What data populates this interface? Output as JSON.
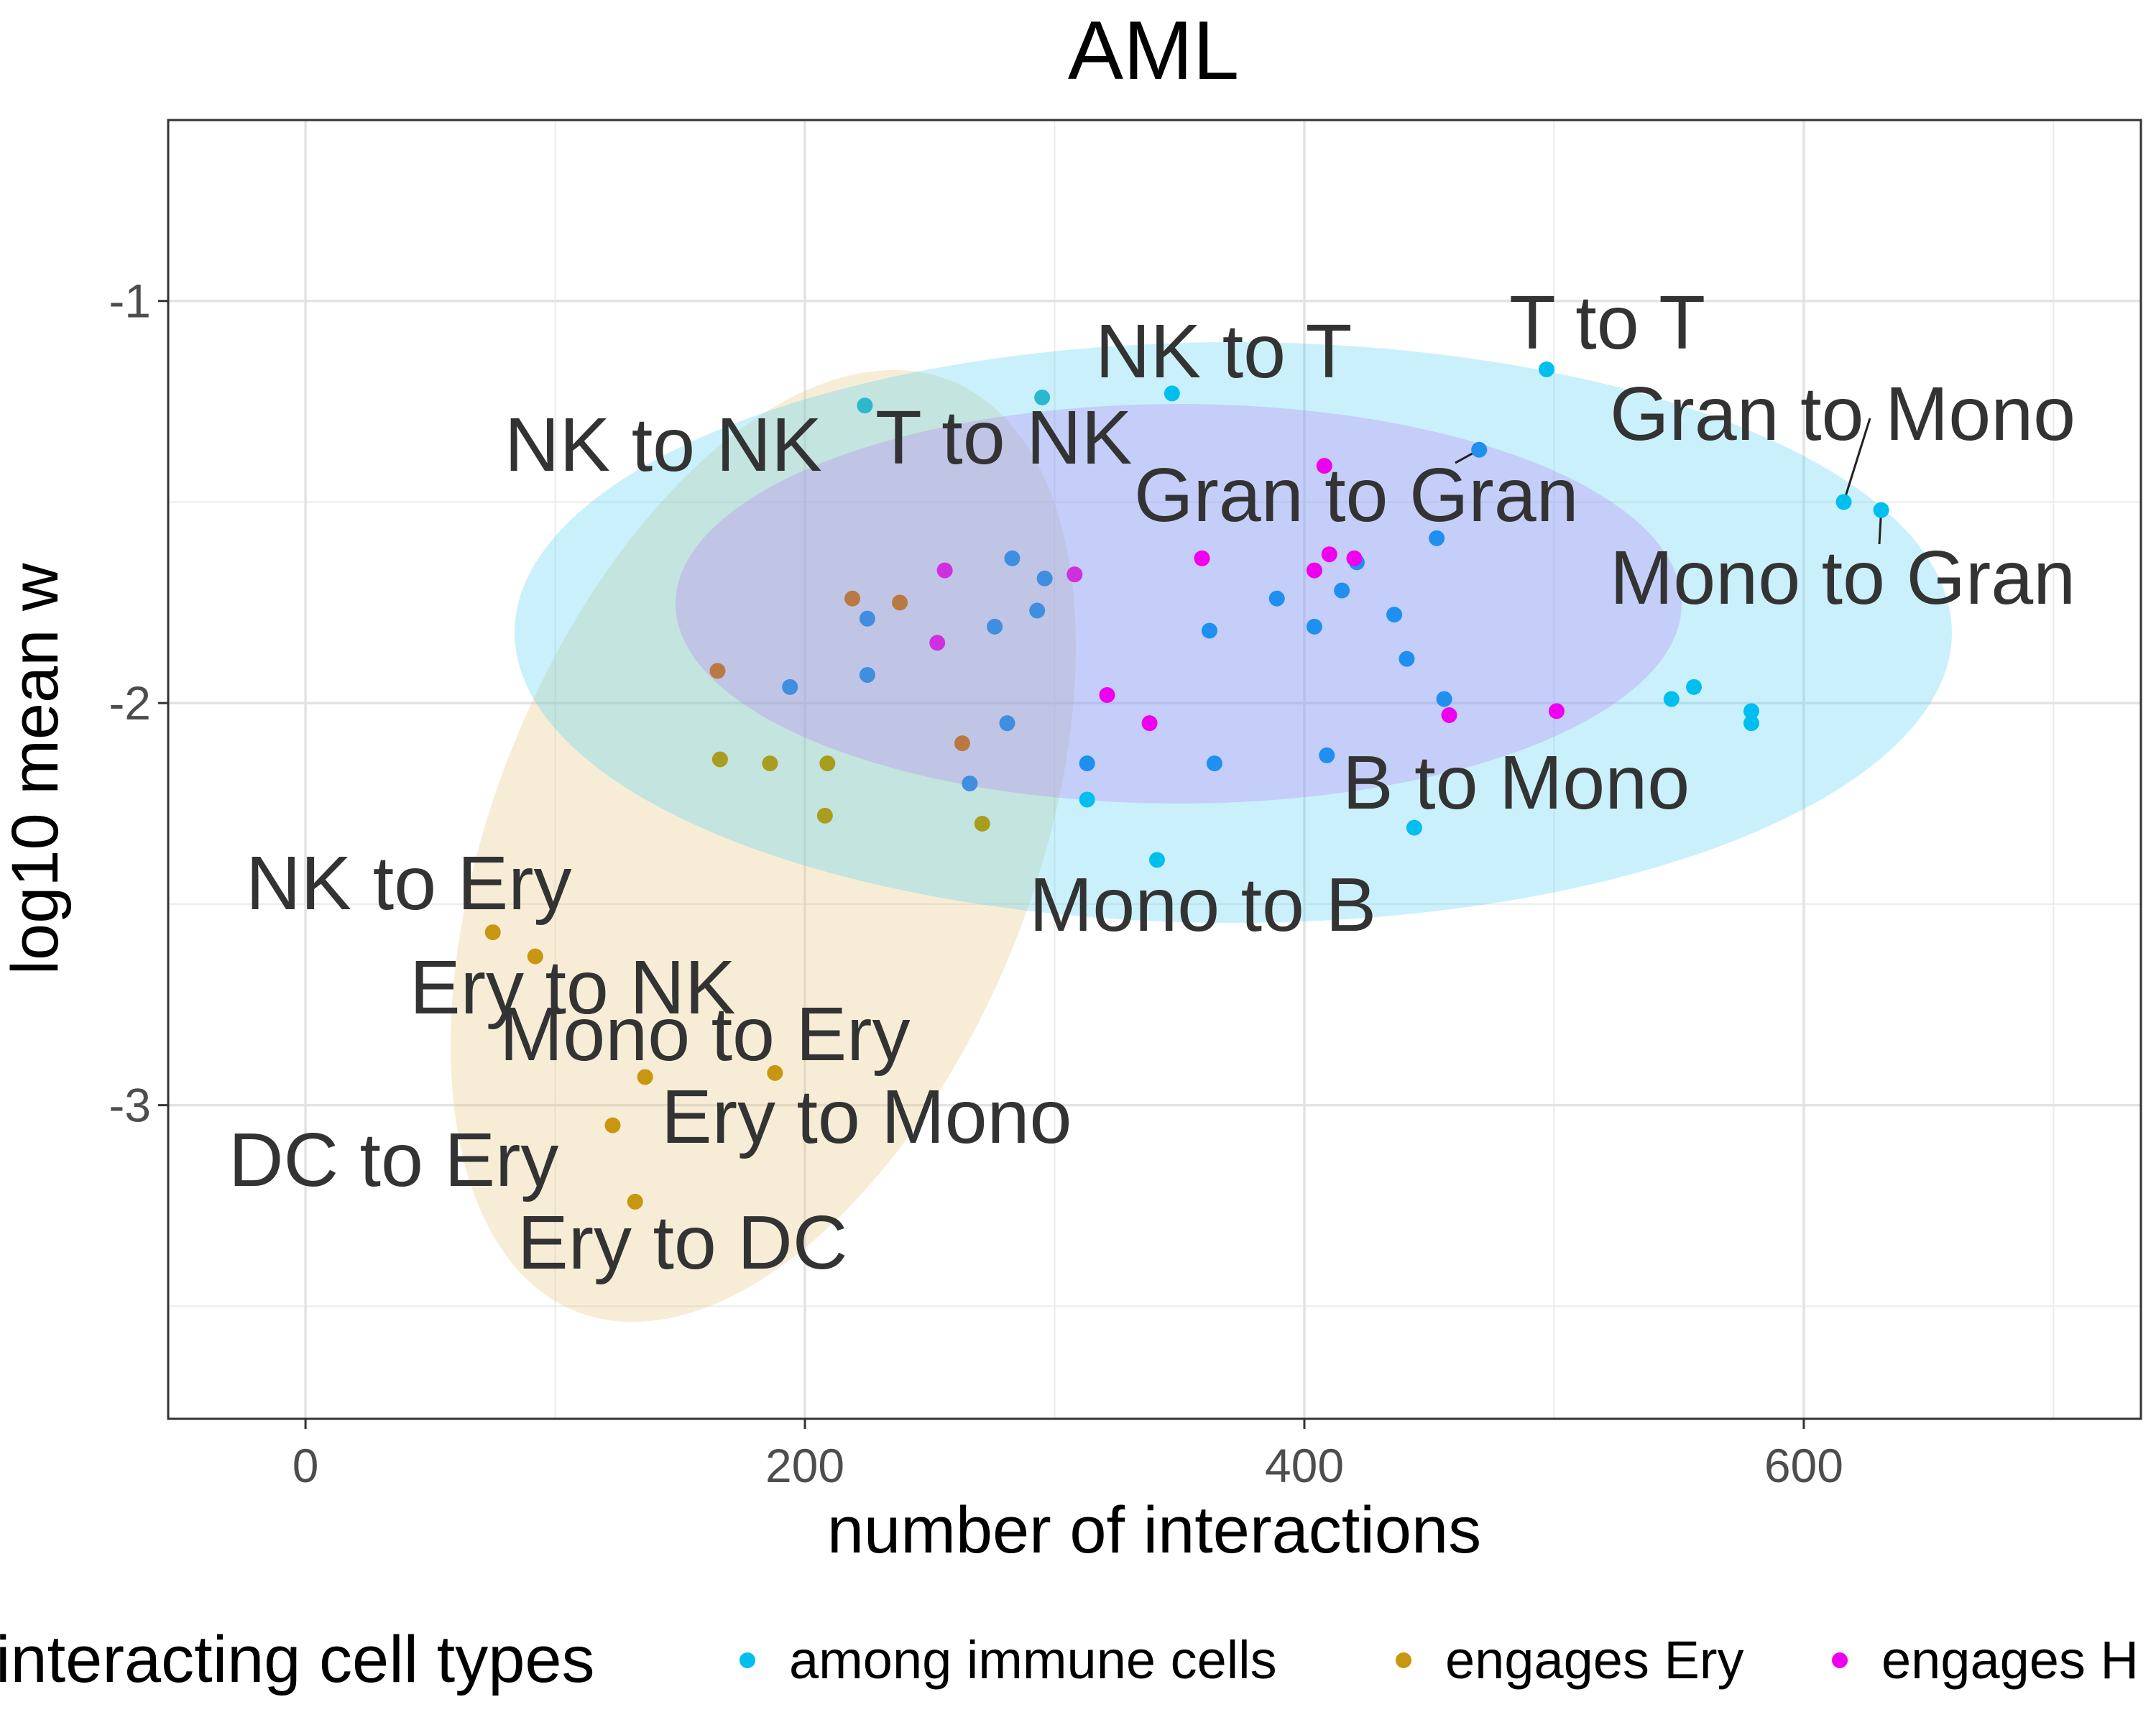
{
  "chart_data": {
    "type": "scatter",
    "title": "AML",
    "xlabel": "number of interactions",
    "ylabel": "log10 mean w",
    "xlim": [
      -55,
      735
    ],
    "ylim": [
      -3.78,
      -0.55
    ],
    "x_ticks": [
      0,
      200,
      400,
      600
    ],
    "y_ticks": [
      -1,
      -2,
      -3
    ],
    "grid": true,
    "legend": {
      "title": "interacting cell types",
      "placement": "bottom",
      "entries": [
        {
          "label": "among immune cells",
          "color": "#00bfef"
        },
        {
          "label": "engages Ery",
          "color": "#c89611"
        },
        {
          "label": "engages H",
          "color": "#ee00ee"
        }
      ]
    },
    "ellipses": [
      {
        "group": "engages Ery",
        "color": "#e6c37a"
      },
      {
        "group": "among immune cells",
        "color": "#4fd2f2"
      },
      {
        "group": "engages H",
        "color": "#b57ef4"
      }
    ],
    "points": [
      {
        "x": 75,
        "y": -2.57,
        "c": "#c89611"
      },
      {
        "x": 92,
        "y": -2.63,
        "c": "#c89611"
      },
      {
        "x": 136,
        "y": -2.93,
        "c": "#c89611"
      },
      {
        "x": 188,
        "y": -2.92,
        "c": "#c89611"
      },
      {
        "x": 123,
        "y": -3.05,
        "c": "#c89611"
      },
      {
        "x": 132,
        "y": -3.24,
        "c": "#c89611"
      },
      {
        "x": 166,
        "y": -2.14,
        "c": "#a99d1f"
      },
      {
        "x": 186,
        "y": -2.15,
        "c": "#a99d1f"
      },
      {
        "x": 209,
        "y": -2.15,
        "c": "#a99d1f"
      },
      {
        "x": 208,
        "y": -2.28,
        "c": "#a99d1f"
      },
      {
        "x": 271,
        "y": -2.3,
        "c": "#a99d1f"
      },
      {
        "x": 165,
        "y": -1.92,
        "c": "#b87a42"
      },
      {
        "x": 219,
        "y": -1.74,
        "c": "#b87a42"
      },
      {
        "x": 238,
        "y": -1.75,
        "c": "#b87a42"
      },
      {
        "x": 263,
        "y": -2.1,
        "c": "#b87a42"
      },
      {
        "x": 224,
        "y": -1.26,
        "c": "#2bb8cf"
      },
      {
        "x": 295,
        "y": -1.24,
        "c": "#2bb8cf"
      },
      {
        "x": 194,
        "y": -1.96,
        "c": "#3f8ee0"
      },
      {
        "x": 225,
        "y": -1.79,
        "c": "#3f8ee0"
      },
      {
        "x": 225,
        "y": -1.93,
        "c": "#3f8ee0"
      },
      {
        "x": 276,
        "y": -1.81,
        "c": "#3f8ee0"
      },
      {
        "x": 283,
        "y": -1.64,
        "c": "#3f8ee0"
      },
      {
        "x": 296,
        "y": -1.69,
        "c": "#3f8ee0"
      },
      {
        "x": 293,
        "y": -1.77,
        "c": "#3f8ee0"
      },
      {
        "x": 281,
        "y": -2.05,
        "c": "#3f8ee0"
      },
      {
        "x": 266,
        "y": -2.2,
        "c": "#3f8ee0"
      },
      {
        "x": 256,
        "y": -1.67,
        "c": "#d02fe0"
      },
      {
        "x": 253,
        "y": -1.85,
        "c": "#d02fe0"
      },
      {
        "x": 308,
        "y": -1.68,
        "c": "#d02fe0"
      },
      {
        "x": 347,
        "y": -1.23,
        "c": "#00bfef"
      },
      {
        "x": 497,
        "y": -1.17,
        "c": "#00bfef"
      },
      {
        "x": 470,
        "y": -1.37,
        "c": "#1f90f0"
      },
      {
        "x": 616,
        "y": -1.5,
        "c": "#00bfef"
      },
      {
        "x": 631,
        "y": -1.52,
        "c": "#00bfef"
      },
      {
        "x": 453,
        "y": -1.59,
        "c": "#1f90f0"
      },
      {
        "x": 421,
        "y": -1.65,
        "c": "#1f90f0"
      },
      {
        "x": 389,
        "y": -1.74,
        "c": "#1f90f0"
      },
      {
        "x": 415,
        "y": -1.72,
        "c": "#1f90f0"
      },
      {
        "x": 436,
        "y": -1.78,
        "c": "#1f90f0"
      },
      {
        "x": 404,
        "y": -1.81,
        "c": "#1f90f0"
      },
      {
        "x": 362,
        "y": -1.82,
        "c": "#1f90f0"
      },
      {
        "x": 441,
        "y": -1.89,
        "c": "#1f90f0"
      },
      {
        "x": 456,
        "y": -1.99,
        "c": "#1f90f0"
      },
      {
        "x": 313,
        "y": -2.15,
        "c": "#1f90f0"
      },
      {
        "x": 364,
        "y": -2.15,
        "c": "#1f90f0"
      },
      {
        "x": 409,
        "y": -2.13,
        "c": "#1f90f0"
      },
      {
        "x": 313,
        "y": -2.24,
        "c": "#00bfef"
      },
      {
        "x": 444,
        "y": -2.31,
        "c": "#00bfef"
      },
      {
        "x": 341,
        "y": -2.39,
        "c": "#00bfef"
      },
      {
        "x": 547,
        "y": -1.99,
        "c": "#00bfef"
      },
      {
        "x": 556,
        "y": -1.96,
        "c": "#00bfef"
      },
      {
        "x": 579,
        "y": -2.02,
        "c": "#00bfef"
      },
      {
        "x": 579,
        "y": -2.05,
        "c": "#00bfef"
      },
      {
        "x": 408,
        "y": -1.41,
        "c": "#ee00ee"
      },
      {
        "x": 359,
        "y": -1.64,
        "c": "#ee00ee"
      },
      {
        "x": 410,
        "y": -1.63,
        "c": "#ee00ee"
      },
      {
        "x": 404,
        "y": -1.67,
        "c": "#ee00ee"
      },
      {
        "x": 420,
        "y": -1.64,
        "c": "#ee00ee"
      },
      {
        "x": 321,
        "y": -1.98,
        "c": "#ee00ee"
      },
      {
        "x": 338,
        "y": -2.05,
        "c": "#ee00ee"
      },
      {
        "x": 458,
        "y": -2.03,
        "c": "#ee00ee"
      },
      {
        "x": 501,
        "y": -2.02,
        "c": "#ee00ee"
      }
    ],
    "annotations": [
      {
        "text": "T to T",
        "x": 497,
        "y": -1.17
      },
      {
        "text": "NK to T",
        "x": 347,
        "y": -1.23
      },
      {
        "text": "Gran to Mono",
        "x": 616,
        "y": -1.5
      },
      {
        "text": "NK to NK",
        "x": 224,
        "y": -1.26
      },
      {
        "text": "T to NK",
        "x": 295,
        "y": -1.24
      },
      {
        "text": "Gran to Gran",
        "x": 470,
        "y": -1.37
      },
      {
        "text": "Mono to Gran",
        "x": 631,
        "y": -1.52
      },
      {
        "text": "B to Mono",
        "x": 444,
        "y": -2.31
      },
      {
        "text": "Mono to B",
        "x": 341,
        "y": -2.39
      },
      {
        "text": "NK to Ery",
        "x": 75,
        "y": -2.57
      },
      {
        "text": "Ery to NK",
        "x": 92,
        "y": -2.63
      },
      {
        "text": "Mono to Ery",
        "x": 188,
        "y": -2.92
      },
      {
        "text": "Ery to Mono",
        "x": 136,
        "y": -2.93
      },
      {
        "text": "DC to Ery",
        "x": 123,
        "y": -3.05
      },
      {
        "text": "Ery to DC",
        "x": 132,
        "y": -3.24
      }
    ]
  }
}
